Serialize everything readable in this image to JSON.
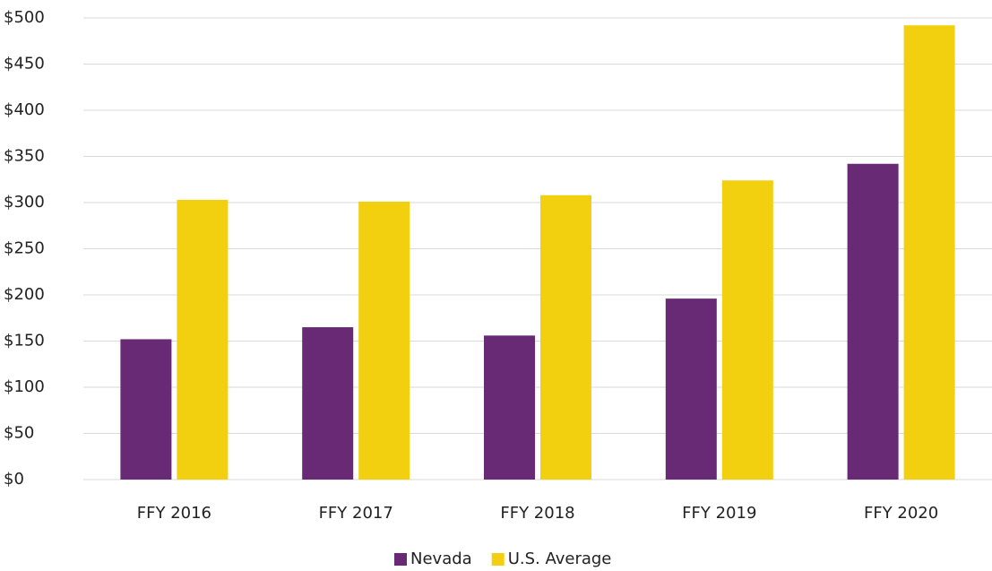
{
  "chart_data": {
    "type": "bar",
    "categories": [
      "FFY 2016",
      "FFY 2017",
      "FFY 2018",
      "FFY 2019",
      "FFY 2020"
    ],
    "series": [
      {
        "name": "Nevada",
        "color": "#692a75",
        "values": [
          152,
          165,
          156,
          196,
          342
        ]
      },
      {
        "name": "U.S. Average",
        "color": "#f2d00f",
        "values": [
          303,
          301,
          308,
          324,
          492
        ]
      }
    ],
    "ylim": [
      0,
      500
    ],
    "yticks": [
      {
        "value": 0,
        "label": "$0"
      },
      {
        "value": 50,
        "label": "$50"
      },
      {
        "value": 100,
        "label": "$100"
      },
      {
        "value": 150,
        "label": "$150"
      },
      {
        "value": 200,
        "label": "$200"
      },
      {
        "value": 250,
        "label": "$250"
      },
      {
        "value": 300,
        "label": "$300"
      },
      {
        "value": 350,
        "label": "$350"
      },
      {
        "value": 400,
        "label": "$400"
      },
      {
        "value": 450,
        "label": "$450"
      },
      {
        "value": 500,
        "label": "$500"
      }
    ],
    "grid": true,
    "legend": "bottom"
  }
}
